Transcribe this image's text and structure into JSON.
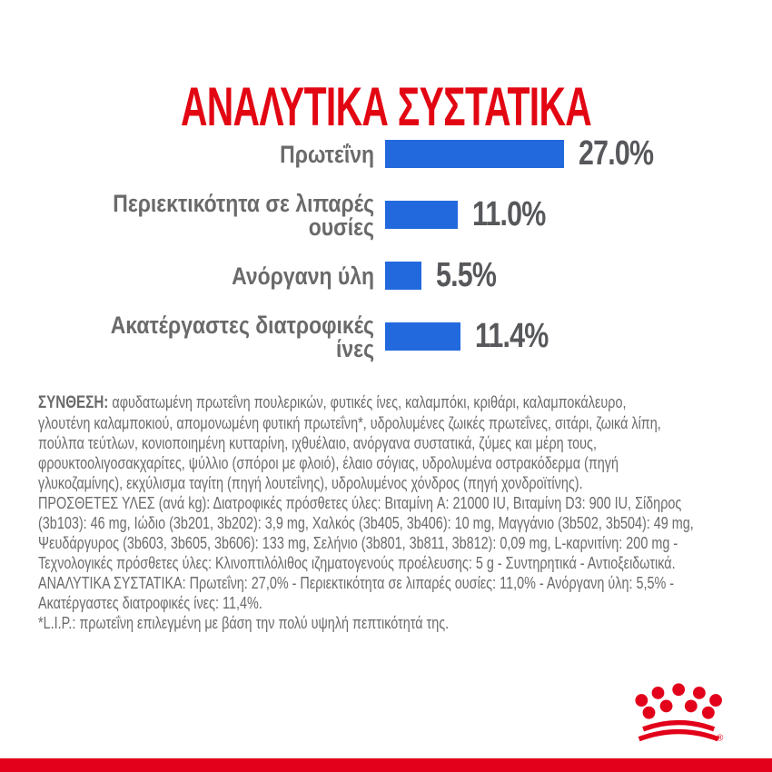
{
  "header": {
    "title": "ΑΝΑΛΥΤΙΚΑ ΣΥΣΤΑΤΙΚΑ"
  },
  "chart_data": {
    "type": "bar",
    "orientation": "horizontal",
    "title": "ΑΝΑΛΥΤΙΚΑ ΣΥΣΤΑΤΙΚΑ",
    "unit": "%",
    "categories": [
      "Πρωτεΐνη",
      "Περιεκτικότητα σε λιπαρές ουσίες",
      "Ανόργανη ύλη",
      "Ακατέργαστες διατροφικές ίνες"
    ],
    "label_lines": [
      [
        "Πρωτεΐνη"
      ],
      [
        "Περιεκτικότητα σε λιπαρές",
        "ουσίες"
      ],
      [
        "Ανόργανη ύλη"
      ],
      [
        "Ακατέργαστες διατροφικές",
        "ίνες"
      ]
    ],
    "values": [
      27.0,
      11.0,
      5.5,
      11.4
    ],
    "value_labels": [
      "27.0%",
      "11.0%",
      "5.5%",
      "11.4%"
    ],
    "xlim": [
      0,
      30
    ],
    "grid": false,
    "legend": false,
    "bar_color": "#2269DE"
  },
  "body": {
    "bold_prefix": "ΣΥΝΘΕΣΗ:",
    "lines": [
      "αφυδατωμένη πρωτεΐνη πουλερικών, φυτικές ίνες, καλαμπόκι, κριθάρι, καλαμποκάλευρο,",
      "γλουτένη καλαμποκιού, απομονωμένη φυτική πρωτεΐνη*, υδρολυμένες ζωικές πρωτεΐνες, σιτάρι, ζωικά λίπη,",
      "πούλπα τεύτλων, κονιοποιημένη κυτταρίνη, ιχθυέλαιο, ανόργανα συστατικά, ζύμες και μέρη τους,",
      "φρουκτοολιγοσακχαρίτες, ψύλλιο (σπόροι με φλοιό), έλαιο σόγιας, υδρολυμένα οστρακόδερμα (πηγή",
      "γλυκοζαμίνης), εκχύλισμα ταγίτη (πηγή λουτεΐνης), υδρολυμένος χόνδρος (πηγή χονδροϊτίνης).",
      "ΠΡΟΣΘΕΤΕΣ ΥΛΕΣ (ανά kg): Διατροφικές πρόσθετες ύλες: Βιταμίνη A: 21000 IU, Βιταμίνη D3: 900 IU, Σίδηρος",
      "(3b103): 46 mg, Ιώδιο (3b201, 3b202): 3,9 mg, Χαλκός (3b405, 3b406): 10 mg, Μαγγάνιο (3b502, 3b504): 49 mg,",
      "Ψευδάργυρος (3b603, 3b605, 3b606): 133 mg, Σελήνιο (3b801, 3b811, 3b812): 0,09 mg, L-καρνιτίνη: 200 mg -",
      "Τεχνολογικές πρόσθετες ύλες: Κλινοπτιλόλιθος ιζηματογενούς προέλευσης: 5 g - Συντηρητικά - Αντιοξειδωτικά.",
      "ΑΝΑΛΥΤΙΚΑ ΣΥΣΤΑΤΙΚΑ: Πρωτεΐνη: 27,0% - Περιεκτικότητα σε λιπαρές ουσίες: 11,0% - Ανόργανη ύλη: 5,5% -",
      "Ακατέργαστες διατροφικές ίνες: 11,4%.",
      "*L.I.P.: πρωτεΐνη επιλεγμένη με βάση την πολύ υψηλή πεπτικότητά της."
    ]
  },
  "footer": {
    "logo": "royal-canin-crown",
    "registered_mark": "®"
  },
  "colors": {
    "title_red": "#E20613",
    "brand_red": "#E2001A",
    "bar_blue": "#2269DE",
    "label_gray": "#6A6A6A",
    "value_gray": "#57585B",
    "body_gray": "#6B6B6B"
  }
}
